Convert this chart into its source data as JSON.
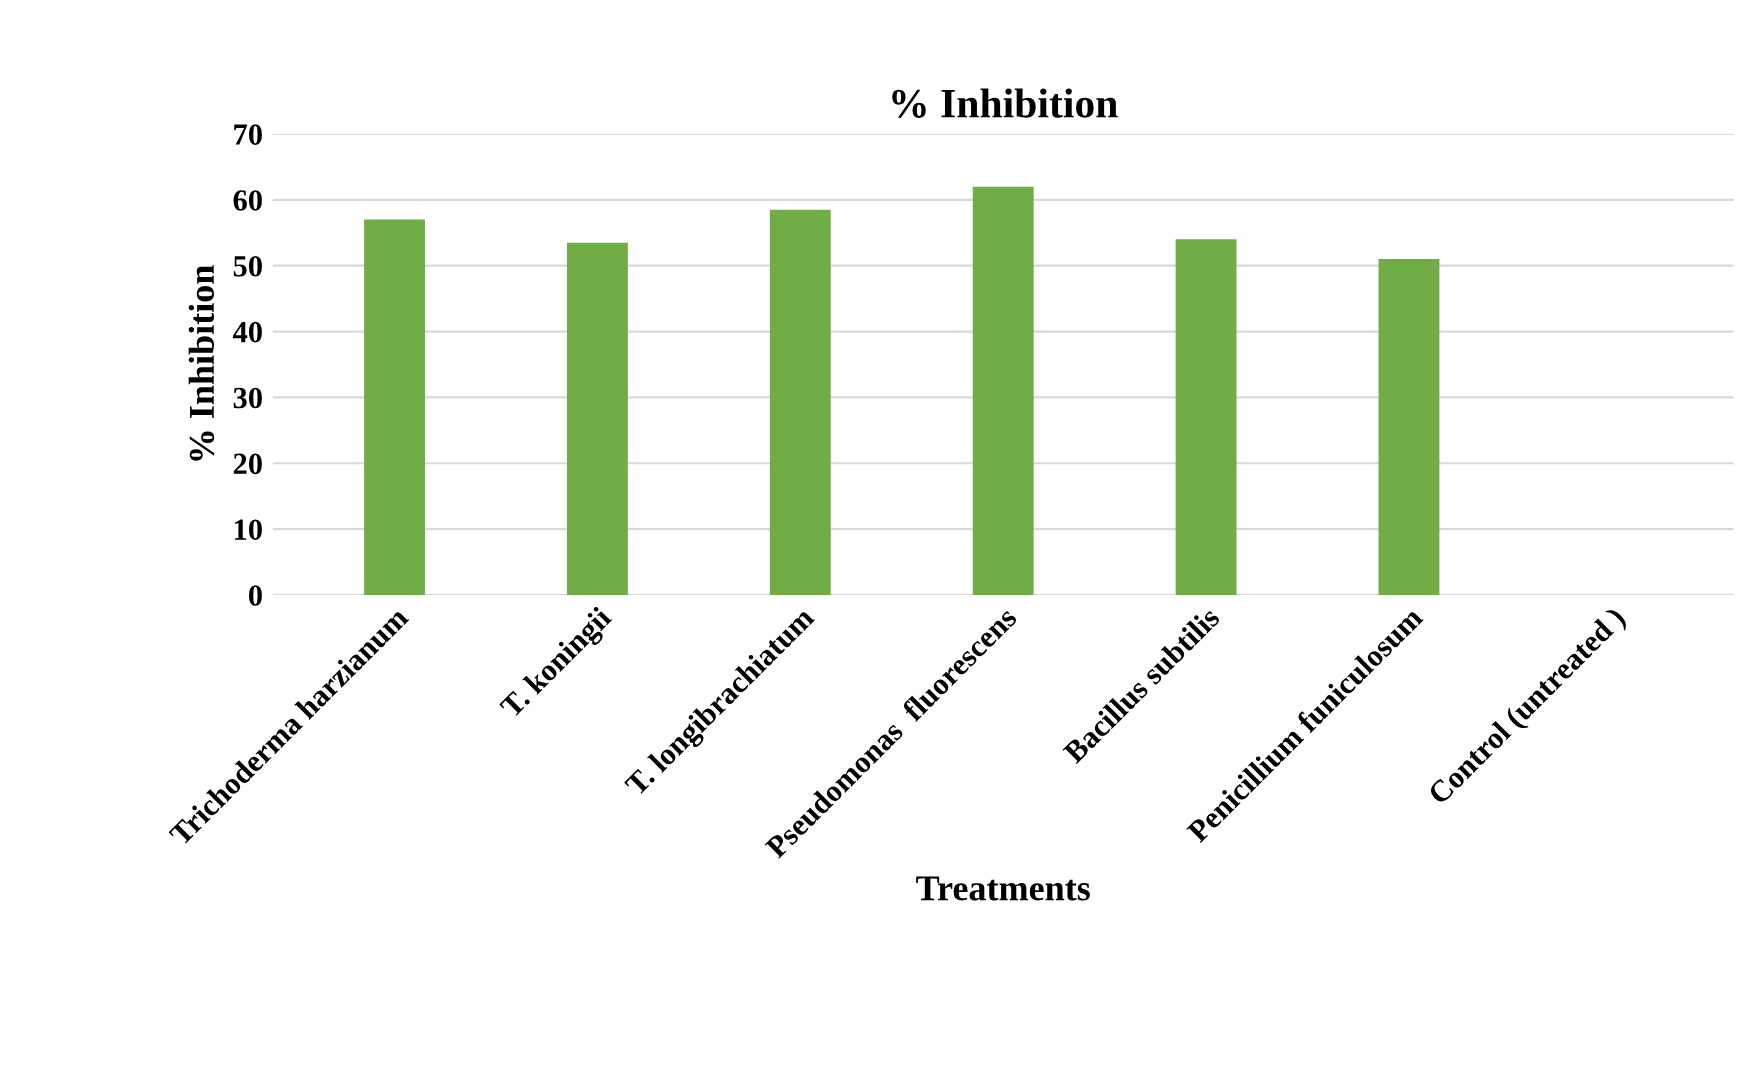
{
  "chart_data": {
    "type": "bar",
    "title": "% Inhibition",
    "xlabel": "Treatments",
    "ylabel": "% Inhibition",
    "categories": [
      "Trichoderma harzianum",
      "T. koningii",
      "T. longibrachiatum",
      "Pseudomonas  fluorescens",
      "Bacillus subtilis",
      "Penicillium funiculosum",
      "Control (untreated )"
    ],
    "values": [
      57,
      53.5,
      58.5,
      62,
      54,
      51,
      0
    ],
    "color": "#70ad47",
    "ylim": [
      0,
      70
    ],
    "yticks": [
      0,
      10,
      20,
      30,
      40,
      50,
      60,
      70
    ],
    "grid": "y"
  }
}
